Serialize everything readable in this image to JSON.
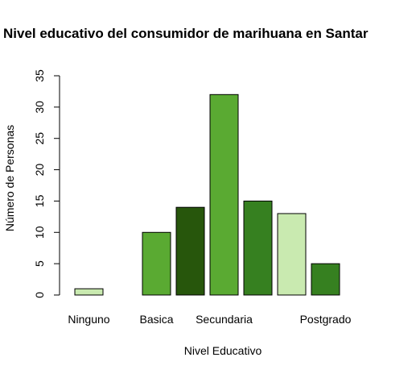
{
  "chart_data": {
    "type": "bar",
    "title": "Nivel educativo del consumidor de marihuana en Santar",
    "xlabel": "Nivel Educativo",
    "ylabel": "Número de Personas",
    "ylim": [
      0,
      35
    ],
    "yticks": [
      0,
      5,
      10,
      15,
      20,
      25,
      30,
      35
    ],
    "grid": false,
    "legend": "none",
    "categories": [
      "Ninguno",
      "",
      "Basica",
      "",
      "Secundaria",
      "",
      "",
      "Postgrado",
      ""
    ],
    "values": [
      1,
      0,
      10,
      14,
      32,
      15,
      13,
      5,
      0
    ],
    "colors": [
      "#c9eab0",
      "#c9eab0",
      "#5aaa32",
      "#27560c",
      "#5aaa32",
      "#368020",
      "#c9eab0",
      "#368020",
      "#c9eab0"
    ],
    "x_tick_labels": [
      {
        "text": "Ninguno",
        "index": 0
      },
      {
        "text": "Basica",
        "index": 2
      },
      {
        "text": "Secundaria",
        "index": 4
      },
      {
        "text": "Postgrado",
        "index": 7
      }
    ]
  }
}
